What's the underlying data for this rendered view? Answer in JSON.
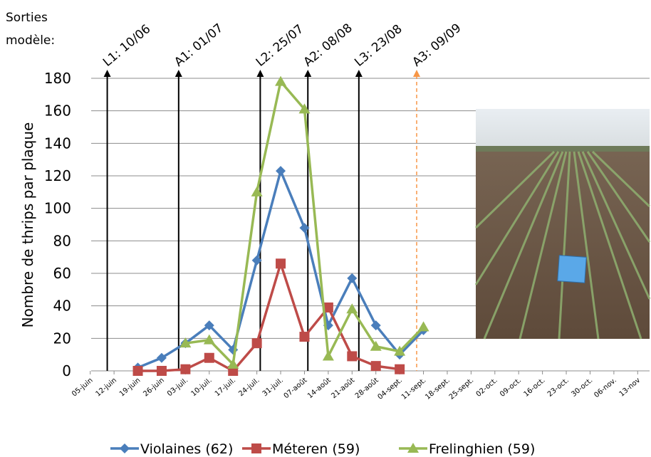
{
  "chart_data": {
    "type": "line",
    "annotation": [
      "Sorties",
      "modèle:"
    ],
    "ylabel": "Nombre de thrips par plaque",
    "categories": [
      "05-juin",
      "12-juin",
      "19-juin",
      "26-juin",
      "03-juil.",
      "10-juil.",
      "17-juil.",
      "24-juil.",
      "31-juil.",
      "07-août",
      "14-août",
      "21-août",
      "28-août",
      "04-sept.",
      "11-sept.",
      "18-sept.",
      "25-sept.",
      "02-oct.",
      "09-oct.",
      "16-oct.",
      "23-oct.",
      "30-oct.",
      "06-nov.",
      "13-nov"
    ],
    "series": [
      {
        "name": "Violaines (62)",
        "color": "#4a7ebb",
        "marker": "diamond",
        "values": [
          null,
          null,
          2,
          8,
          17,
          28,
          13,
          68,
          123,
          88,
          28,
          57,
          28,
          10,
          25,
          null,
          null,
          null,
          null,
          null,
          null,
          null,
          null,
          null
        ]
      },
      {
        "name": "Méteren (59)",
        "color": "#be4b48",
        "marker": "square",
        "values": [
          null,
          null,
          0,
          0,
          1,
          8,
          0,
          17,
          66,
          21,
          39,
          9,
          3,
          1,
          null,
          null,
          null,
          null,
          null,
          null,
          null,
          null,
          null,
          null
        ]
      },
      {
        "name": "Frelinghien (59)",
        "color": "#98b954",
        "marker": "triangle",
        "values": [
          null,
          null,
          null,
          null,
          17,
          19,
          4,
          110,
          178,
          161,
          9,
          38,
          15,
          12,
          27,
          null,
          null,
          null,
          null,
          null,
          null,
          null,
          null,
          null
        ]
      }
    ],
    "events": [
      {
        "label": "L1: 10/06",
        "color": "#000000",
        "dashed": false
      },
      {
        "label": "A1: 01/07",
        "color": "#000000",
        "dashed": false
      },
      {
        "label": "L2: 25/07",
        "color": "#000000",
        "dashed": false
      },
      {
        "label": "A2: 08/08",
        "color": "#000000",
        "dashed": false
      },
      {
        "label": "L3: 23/08",
        "color": "#000000",
        "dashed": false
      },
      {
        "label": "A3: 09/09",
        "color": "#f79646",
        "dashed": true
      }
    ],
    "ylim": [
      0,
      180
    ],
    "yticks": [
      0,
      20,
      40,
      60,
      80,
      100,
      120,
      140,
      160,
      180
    ],
    "grid": true,
    "legend": "bottom"
  }
}
